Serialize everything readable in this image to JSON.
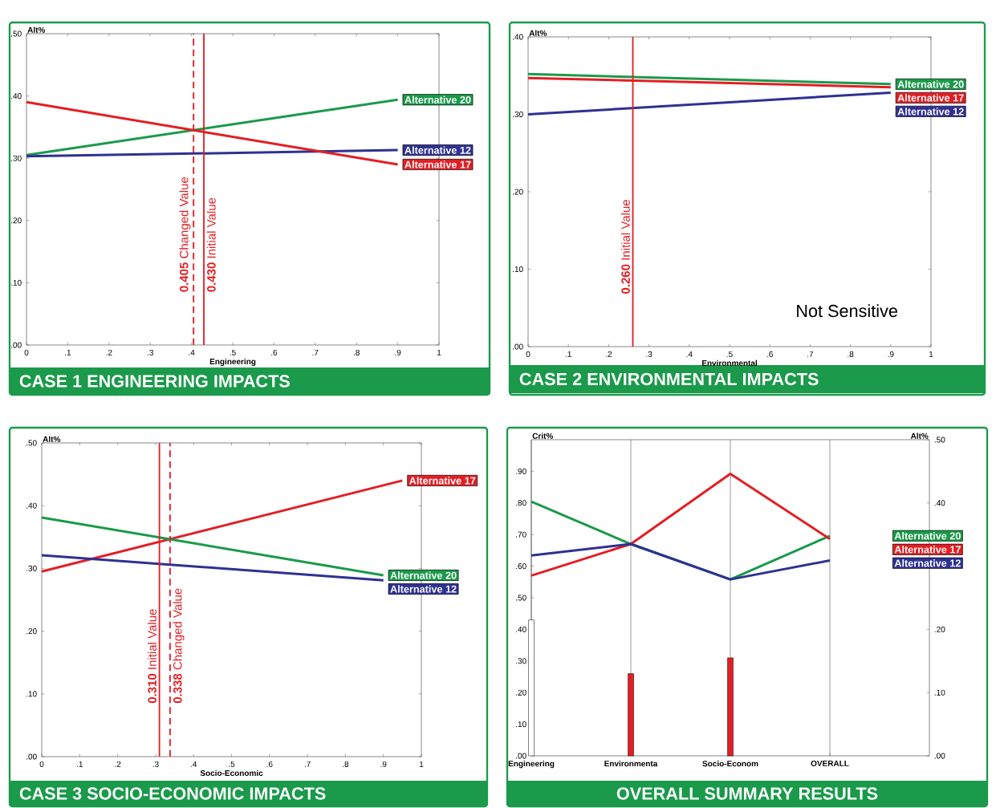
{
  "chart_data": [
    {
      "type": "line",
      "title": "CASE 1 ENGINEERING IMPACTS",
      "xlabel": "Engineering",
      "ylabel": "Alt%",
      "xlim": [
        0,
        1
      ],
      "ylim": [
        0,
        0.5
      ],
      "xticks": [
        0,
        {
          "value": 0.1,
          "label": ".1"
        },
        {
          "value": 0.2,
          "label": ".2"
        },
        {
          "value": 0.3,
          "label": ".3"
        },
        {
          "value": 0.4,
          "label": ".4"
        },
        {
          "value": 0.5,
          "label": ".5"
        },
        {
          "value": 0.6,
          "label": ".6"
        },
        {
          "value": 0.7,
          "label": ".7"
        },
        {
          "value": 0.8,
          "label": ".8"
        },
        {
          "value": 0.9,
          "label": ".9"
        },
        1
      ],
      "yticks": [
        {
          "value": 0,
          "label": ".00"
        },
        {
          "value": 0.1,
          "label": ".10"
        },
        {
          "value": 0.2,
          "label": ".20"
        },
        {
          "value": 0.3,
          "label": ".30"
        },
        {
          "value": 0.4,
          "label": ".40"
        },
        {
          "value": 0.5,
          "label": ".50"
        }
      ],
      "series": [
        {
          "name": "Alternative 20",
          "color": "#1a9a4a",
          "x": [
            0,
            0.9
          ],
          "values": [
            0.305,
            0.394
          ]
        },
        {
          "name": "Alternative 12",
          "color": "#2e3192",
          "x": [
            0,
            0.9
          ],
          "values": [
            0.303,
            0.313
          ]
        },
        {
          "name": "Alternative 17",
          "color": "#e31e24",
          "x": [
            0,
            0.9
          ],
          "values": [
            0.39,
            0.29
          ]
        }
      ],
      "ref_lines": [
        {
          "axis": "x",
          "value": 0.43,
          "label": "**0.430** Initial Value",
          "color": "#e31e24",
          "line_style": "solid"
        },
        {
          "axis": "x",
          "value": 0.405,
          "label": "**0.405** Changed Value",
          "color": "#e31e24",
          "line_style": "dashed"
        }
      ]
    },
    {
      "type": "line",
      "title": "CASE 2 ENVIRONMENTAL IMPACTS",
      "xlabel": "Environmental",
      "ylabel": "Alt%",
      "xlim": [
        0,
        1
      ],
      "ylim": [
        0,
        0.4
      ],
      "xticks": [
        0,
        {
          "value": 0.1,
          "label": ".1"
        },
        {
          "value": 0.2,
          "label": ".2"
        },
        {
          "value": 0.3,
          "label": ".3"
        },
        {
          "value": 0.4,
          "label": ".4"
        },
        {
          "value": 0.5,
          "label": ".5"
        },
        {
          "value": 0.6,
          "label": ".6"
        },
        {
          "value": 0.7,
          "label": ".7"
        },
        {
          "value": 0.8,
          "label": ".8"
        },
        {
          "value": 0.9,
          "label": ".9"
        },
        1
      ],
      "yticks": [
        {
          "value": 0,
          "label": ".00"
        },
        {
          "value": 0.1,
          "label": ".10"
        },
        {
          "value": 0.2,
          "label": ".20"
        },
        {
          "value": 0.3,
          "label": ".30"
        },
        {
          "value": 0.4,
          "label": ".40"
        }
      ],
      "series": [
        {
          "name": "Alternative 20",
          "color": "#1a9a4a",
          "x": [
            0,
            0.9
          ],
          "values": [
            0.352,
            0.339
          ]
        },
        {
          "name": "Alternative 17",
          "color": "#e31e24",
          "x": [
            0,
            0.9
          ],
          "values": [
            0.347,
            0.335
          ]
        },
        {
          "name": "Alternative 12",
          "color": "#2e3192",
          "x": [
            0,
            0.9
          ],
          "values": [
            0.3,
            0.328
          ]
        }
      ],
      "ref_lines": [
        {
          "axis": "x",
          "value": 0.26,
          "label": "**0.260** Initial Value",
          "color": "#e31e24",
          "line_style": "solid"
        }
      ],
      "annotations": [
        "Not Sensitive"
      ]
    },
    {
      "type": "line",
      "title": "CASE 3 SOCIO-ECONOMIC IMPACTS",
      "xlabel": "Socio-Economic",
      "ylabel": "Alt%",
      "xlim": [
        0,
        1
      ],
      "ylim": [
        0,
        0.5
      ],
      "xticks": [
        0,
        {
          "value": 0.1,
          "label": ".1"
        },
        {
          "value": 0.2,
          "label": ".2"
        },
        {
          "value": 0.3,
          "label": ".3"
        },
        {
          "value": 0.4,
          "label": ".4"
        },
        {
          "value": 0.5,
          "label": ".5"
        },
        {
          "value": 0.6,
          "label": ".6"
        },
        {
          "value": 0.7,
          "label": ".7"
        },
        {
          "value": 0.8,
          "label": ".8"
        },
        {
          "value": 0.9,
          "label": ".9"
        },
        1
      ],
      "yticks": [
        {
          "value": 0,
          "label": ".00"
        },
        {
          "value": 0.1,
          "label": ".10"
        },
        {
          "value": 0.2,
          "label": ".20"
        },
        {
          "value": 0.3,
          "label": ".30"
        },
        {
          "value": 0.4,
          "label": ".40"
        },
        {
          "value": 0.5,
          "label": ".50"
        }
      ],
      "series": [
        {
          "name": "Alternative 17",
          "color": "#e31e24",
          "x": [
            0,
            0.95
          ],
          "values": [
            0.295,
            0.44
          ]
        },
        {
          "name": "Alternative 20",
          "color": "#1a9a4a",
          "x": [
            0,
            0.9
          ],
          "values": [
            0.381,
            0.289
          ]
        },
        {
          "name": "Alternative 12",
          "color": "#2e3192",
          "x": [
            0,
            0.9
          ],
          "values": [
            0.321,
            0.281
          ]
        }
      ],
      "ref_lines": [
        {
          "axis": "x",
          "value": 0.31,
          "label": "**0.310** Initial Value",
          "color": "#e31e24",
          "line_style": "solid"
        },
        {
          "axis": "x",
          "value": 0.338,
          "label": "**0.338** Changed Value",
          "color": "#e31e24",
          "line_style": "dashed"
        }
      ]
    },
    {
      "type": "bar",
      "title": "OVERALL SUMMARY RESULTS",
      "ylabel": "Crit%",
      "y2label": "Alt%",
      "grid": "x",
      "categories": [
        "Engineering",
        "Environmenta",
        "Socio-Econom",
        "OVERALL"
      ],
      "ylim": [
        0,
        1
      ],
      "yticks": [
        {
          "value": 0,
          "label": ".00"
        },
        {
          "value": 0.1,
          "label": ".10"
        },
        {
          "value": 0.2,
          "label": ".20"
        },
        {
          "value": 0.3,
          "label": ".30"
        },
        {
          "value": 0.4,
          "label": ".40"
        },
        {
          "value": 0.5,
          "label": ".50"
        },
        {
          "value": 0.6,
          "label": ".60"
        },
        {
          "value": 0.7,
          "label": ".70"
        },
        {
          "value": 0.8,
          "label": ".80"
        },
        {
          "value": 0.9,
          "label": ".90"
        }
      ],
      "y2lim": [
        0,
        0.5
      ],
      "y2ticks": [
        {
          "value": 0,
          "label": ".00"
        },
        {
          "value": 0.1,
          "label": ".10"
        },
        {
          "value": 0.2,
          "label": ".20"
        },
        {
          "value": 0.3,
          "label": null
        },
        {
          "value": 0.4,
          "label": ".40"
        },
        {
          "value": 0.5,
          "label": ".50"
        }
      ],
      "series": [
        {
          "type": "bar",
          "colors": [
            "#ffffff",
            "#e31e24",
            "#e31e24",
            null
          ],
          "values": [
            0.43,
            0.26,
            0.31,
            null
          ]
        },
        {
          "type": "line",
          "axis": "y2",
          "name": "Alternative 20",
          "color": "#1a9a4a",
          "values": [
            0.402,
            0.335,
            0.279,
            0.348
          ]
        },
        {
          "type": "line",
          "axis": "y2",
          "name": "Alternative 17",
          "color": "#e31e24",
          "values": [
            0.285,
            0.335,
            0.446,
            0.343
          ]
        },
        {
          "type": "line",
          "axis": "y2",
          "name": "Alternative 12",
          "color": "#2e3192",
          "values": [
            0.317,
            0.335,
            0.279,
            0.309
          ]
        }
      ]
    }
  ]
}
